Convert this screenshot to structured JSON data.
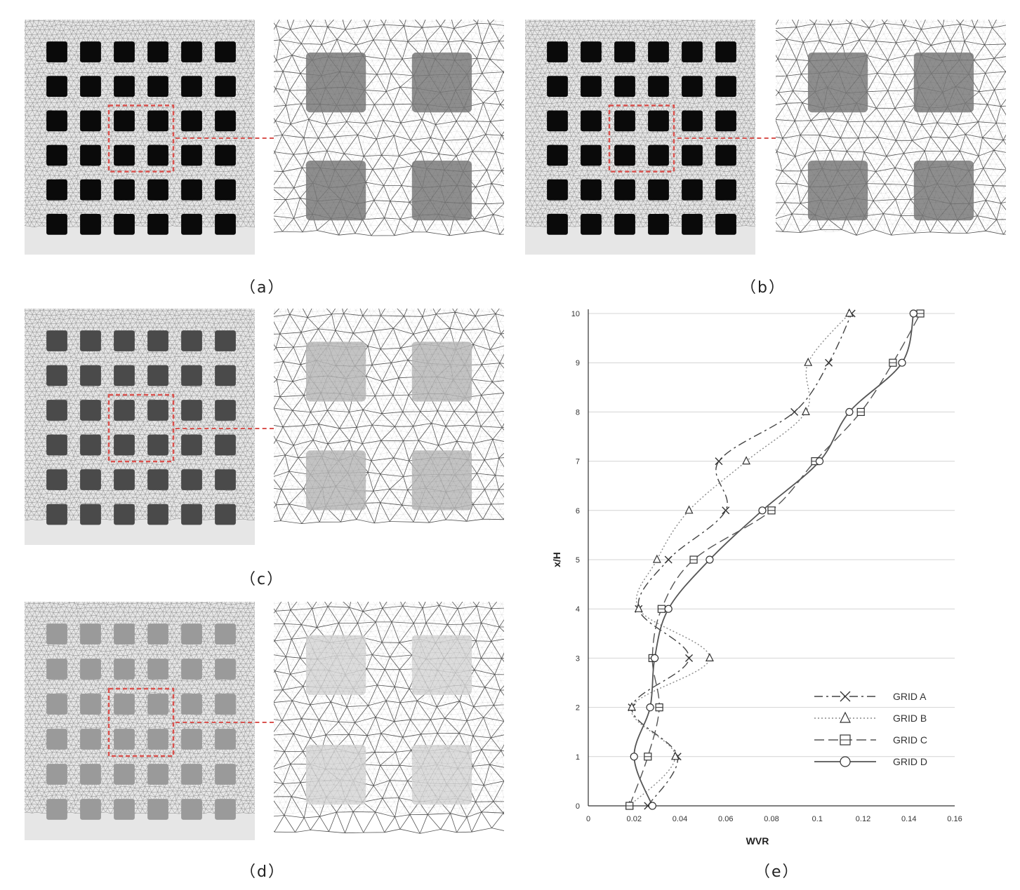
{
  "figure": {
    "panels": [
      {
        "id": "a",
        "caption": "（a）",
        "mesh": "GRID A",
        "obstacle_tone": "dark"
      },
      {
        "id": "b",
        "caption": "（b）",
        "mesh": "GRID B",
        "obstacle_tone": "dark"
      },
      {
        "id": "c",
        "caption": "（c）",
        "mesh": "GRID C",
        "obstacle_tone": "medium"
      },
      {
        "id": "d",
        "caption": "（d）",
        "mesh": "GRID D",
        "obstacle_tone": "light"
      }
    ],
    "chart_caption": "（e）",
    "highlight_color": "#d9534f"
  },
  "chart_data": {
    "type": "line",
    "orientation": "x-value-horizontal",
    "xlabel": "WVR",
    "ylabel": "x/H",
    "xlim": [
      0,
      0.16
    ],
    "ylim": [
      0,
      10
    ],
    "xticks": [
      "0",
      "0.02",
      "0.04",
      "0.06",
      "0.08",
      "0.1",
      "0.12",
      "0.14",
      "0.16"
    ],
    "yticks": [
      "0",
      "1",
      "2",
      "3",
      "4",
      "5",
      "6",
      "7",
      "8",
      "9",
      "10"
    ],
    "grid": "horizontal",
    "legend_position": "bottom-right",
    "series": [
      {
        "name": "GRID A",
        "marker": "x",
        "dash": "12,5,3,5",
        "color": "#444444",
        "points": [
          [
            0.026,
            0
          ],
          [
            0.039,
            1
          ],
          [
            0.019,
            2
          ],
          [
            0.044,
            3
          ],
          [
            0.022,
            4
          ],
          [
            0.035,
            5
          ],
          [
            0.06,
            6
          ],
          [
            0.057,
            7
          ],
          [
            0.09,
            8
          ],
          [
            0.105,
            9
          ],
          [
            0.115,
            10
          ]
        ]
      },
      {
        "name": "GRID B",
        "marker": "triangle",
        "dash": "2,3",
        "color": "#8a8a8a",
        "points": [
          [
            0.018,
            0
          ],
          [
            0.038,
            1
          ],
          [
            0.019,
            2
          ],
          [
            0.053,
            3
          ],
          [
            0.022,
            4
          ],
          [
            0.03,
            5
          ],
          [
            0.044,
            6
          ],
          [
            0.069,
            7
          ],
          [
            0.095,
            8
          ],
          [
            0.096,
            9
          ],
          [
            0.114,
            10
          ]
        ]
      },
      {
        "name": "GRID C",
        "marker": "square",
        "dash": "14,6",
        "color": "#555555",
        "points": [
          [
            0.018,
            0
          ],
          [
            0.026,
            1
          ],
          [
            0.031,
            2
          ],
          [
            0.028,
            3
          ],
          [
            0.032,
            4
          ],
          [
            0.046,
            5
          ],
          [
            0.08,
            6
          ],
          [
            0.099,
            7
          ],
          [
            0.119,
            8
          ],
          [
            0.133,
            9
          ],
          [
            0.145,
            10
          ]
        ]
      },
      {
        "name": "GRID D",
        "marker": "circle",
        "dash": "",
        "color": "#555555",
        "points": [
          [
            0.028,
            0
          ],
          [
            0.02,
            1
          ],
          [
            0.027,
            2
          ],
          [
            0.029,
            3
          ],
          [
            0.035,
            4
          ],
          [
            0.053,
            5
          ],
          [
            0.076,
            6
          ],
          [
            0.101,
            7
          ],
          [
            0.114,
            8
          ],
          [
            0.137,
            9
          ],
          [
            0.142,
            10
          ]
        ]
      }
    ]
  }
}
